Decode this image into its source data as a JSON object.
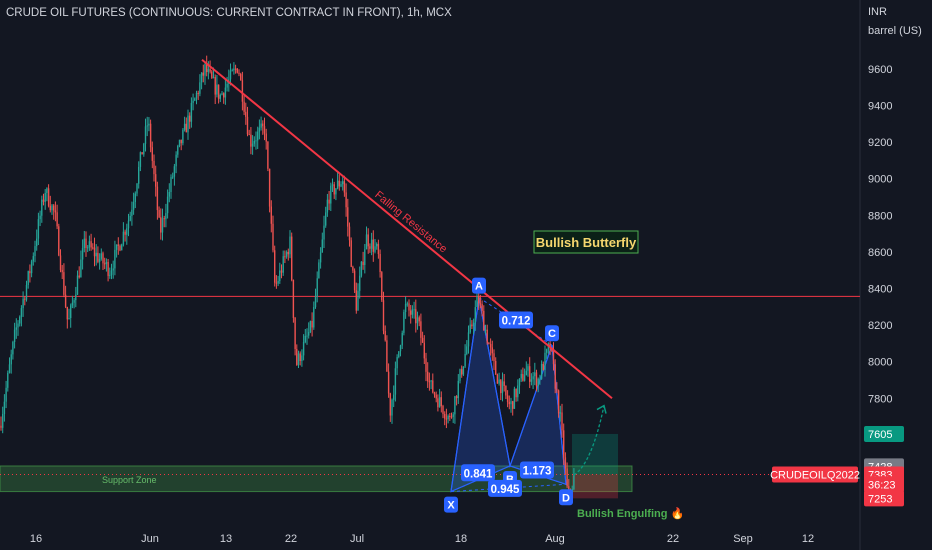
{
  "header": {
    "title": "CRUDE OIL FUTURES (CONTINUOUS: CURRENT CONTRACT IN FRONT), 1h, MCX",
    "currency": "INR",
    "unit": "barrel (US)"
  },
  "colors": {
    "background": "#131722",
    "up": "#26a69a",
    "down": "#ef5350",
    "resistance": "#f23645",
    "pattern_fill": "#2962ff",
    "support": "#4caf50",
    "text": "#d1d4dc"
  },
  "chart_data": {
    "type": "candlestick",
    "ylim": [
      7080,
      9780
    ],
    "yticks": [
      7800,
      8000,
      8200,
      8400,
      8600,
      8800,
      9000,
      9200,
      9400,
      9600
    ],
    "xticks": [
      "16",
      "Jun",
      "13",
      "22",
      "Jul",
      "18",
      "Aug",
      "22",
      "Sep",
      "12"
    ],
    "xtick_slots": [
      36,
      150,
      226,
      291,
      357,
      461,
      555,
      673,
      743,
      808
    ],
    "x_slot_range": [
      0,
      860
    ],
    "path": [
      [
        0,
        7650
      ],
      [
        15,
        8150
      ],
      [
        30,
        8500
      ],
      [
        45,
        8940
      ],
      [
        55,
        8800
      ],
      [
        68,
        8200
      ],
      [
        85,
        8650
      ],
      [
        110,
        8500
      ],
      [
        130,
        8800
      ],
      [
        148,
        9320
      ],
      [
        160,
        8700
      ],
      [
        178,
        9150
      ],
      [
        205,
        9600
      ],
      [
        220,
        9450
      ],
      [
        238,
        9620
      ],
      [
        250,
        9200
      ],
      [
        265,
        9280
      ],
      [
        275,
        8400
      ],
      [
        290,
        8650
      ],
      [
        296,
        7980
      ],
      [
        312,
        8200
      ],
      [
        328,
        8900
      ],
      [
        343,
        9000
      ],
      [
        356,
        8300
      ],
      [
        366,
        8680
      ],
      [
        378,
        8600
      ],
      [
        390,
        7720
      ],
      [
        405,
        8300
      ],
      [
        418,
        8220
      ],
      [
        430,
        7870
      ],
      [
        450,
        7680
      ],
      [
        478,
        8350
      ],
      [
        495,
        7950
      ],
      [
        510,
        7750
      ],
      [
        525,
        7950
      ],
      [
        538,
        7900
      ],
      [
        550,
        8090
      ],
      [
        560,
        7700
      ],
      [
        568,
        7250
      ],
      [
        575,
        7380
      ]
    ],
    "current_price": 7383,
    "price_labels": [
      {
        "value": 7605,
        "text": "7605",
        "bg": "#089981",
        "fg": "#ffffff"
      },
      {
        "value": 7428,
        "text": "7428",
        "bg": "#787b86",
        "fg": "#ffffff"
      },
      {
        "value": 7383,
        "text": "7383",
        "bg": "#f23645",
        "fg": "#ffffff"
      },
      {
        "value": 7330,
        "text": "36:23",
        "bg": "#f23645",
        "fg": "#ffffff"
      },
      {
        "value": 7253,
        "text": "7253",
        "bg": "#f23645",
        "fg": "#ffffff"
      }
    ],
    "symbol_label": "CRUDEOILQ2022",
    "horizontal_level": 8357,
    "falling_resistance": {
      "from": [
        202,
        9650
      ],
      "to": [
        612,
        7800
      ],
      "label": "Falling Resistance"
    },
    "support_zone": {
      "low": 7290,
      "high": 7430,
      "x_from": 0,
      "x_to": 632,
      "label": "Support Zone"
    },
    "butterfly": {
      "title": "Bullish Butterfly",
      "points": [
        {
          "name": "X",
          "x": 451,
          "y": 7290
        },
        {
          "name": "A",
          "x": 479,
          "y": 8350
        },
        {
          "name": "B",
          "x": 510,
          "y": 7430
        },
        {
          "name": "C",
          "x": 552,
          "y": 8090
        },
        {
          "name": "D",
          "x": 566,
          "y": 7330
        }
      ],
      "ratios": [
        {
          "text": "0.712",
          "x": 516,
          "y": 8225
        },
        {
          "text": "0.841",
          "x": 478,
          "y": 7390
        },
        {
          "text": "0.945",
          "x": 505,
          "y": 7305
        },
        {
          "text": "1.173",
          "x": 537,
          "y": 7405
        }
      ]
    },
    "projection": {
      "from": [
        574,
        7380
      ],
      "to": [
        604,
        7760
      ]
    },
    "trade_box": {
      "x_from": 572,
      "x_to": 618,
      "entry": 7383,
      "target": 7605,
      "stop": 7253
    },
    "annotation": {
      "text": "Bullish Engulfing 🔥",
      "x": 577,
      "y": 7150
    }
  }
}
